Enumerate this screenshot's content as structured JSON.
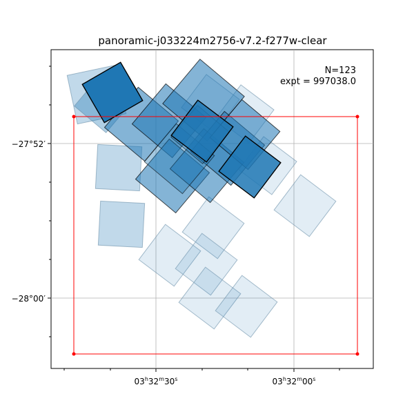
{
  "chart_data": {
    "type": "footprint-map",
    "title": "panoramic-j033224m2756-v7.2-f277w-clear",
    "annotation": {
      "count": "N=123",
      "exptime": "expt = 997038.0"
    },
    "x_ticks": [
      {
        "label": "03h32m30s",
        "ra_sec": 30
      },
      {
        "label": "03h32m00s",
        "ra_sec": 0
      }
    ],
    "y_ticks": [
      {
        "label": "−27°52′",
        "dec_arcmin": -27.8667
      },
      {
        "label": "−28°00′",
        "dec_arcmin": -28.0
      }
    ],
    "grid": true,
    "legend": "none",
    "colors": {
      "footprint": "#1f77b4",
      "footprint_edge": "#000000",
      "faint_edge": "#6a8fa8",
      "bounding_box": "#ff0000",
      "grid": "#b0b0b0"
    }
  }
}
